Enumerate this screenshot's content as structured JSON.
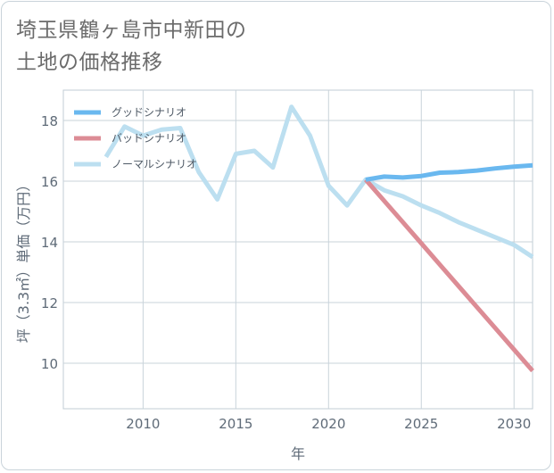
{
  "page": {
    "title_line1": "埼玉県鶴ヶ島市中新田の",
    "title_line2": "土地の価格推移"
  },
  "chart_data": {
    "type": "line",
    "title": "埼玉県鶴ヶ島市中新田の土地の価格推移",
    "xlabel": "年",
    "ylabel": "坪（3.3㎡）単価（万円）",
    "xlim": [
      2005.7,
      2031
    ],
    "ylim": [
      8.5,
      19
    ],
    "xticks": [
      2010,
      2015,
      2020,
      2025,
      2030
    ],
    "yticks": [
      10,
      12,
      14,
      16,
      18
    ],
    "grid": true,
    "legend_position": "top-left",
    "series": [
      {
        "name": "グッドシナリオ",
        "color": "#6ab8ef",
        "x": [
          2022,
          2023,
          2024,
          2025,
          2026,
          2027,
          2028,
          2029,
          2030,
          2031
        ],
        "y": [
          16.05,
          16.15,
          16.12,
          16.17,
          16.28,
          16.3,
          16.35,
          16.42,
          16.48,
          16.52
        ]
      },
      {
        "name": "バッドシナリオ",
        "color": "#dc8c95",
        "x": [
          2022,
          2023,
          2024,
          2025,
          2026,
          2027,
          2028,
          2029,
          2030,
          2031
        ],
        "y": [
          16.05,
          15.35,
          14.65,
          13.95,
          13.25,
          12.55,
          11.85,
          11.15,
          10.45,
          9.75
        ]
      },
      {
        "name": "ノーマルシナリオ",
        "color": "#bcdff0",
        "x": [
          2008,
          2009,
          2010,
          2011,
          2012,
          2013,
          2014,
          2015,
          2016,
          2017,
          2018,
          2019,
          2020,
          2021,
          2022,
          2023,
          2024,
          2025,
          2026,
          2027,
          2028,
          2029,
          2030,
          2031
        ],
        "y": [
          16.8,
          17.8,
          17.5,
          17.7,
          17.75,
          16.3,
          15.4,
          16.9,
          17.0,
          16.45,
          18.45,
          17.5,
          15.85,
          15.2,
          16.05,
          15.7,
          15.5,
          15.2,
          14.95,
          14.65,
          14.4,
          14.15,
          13.9,
          13.5
        ]
      }
    ]
  }
}
